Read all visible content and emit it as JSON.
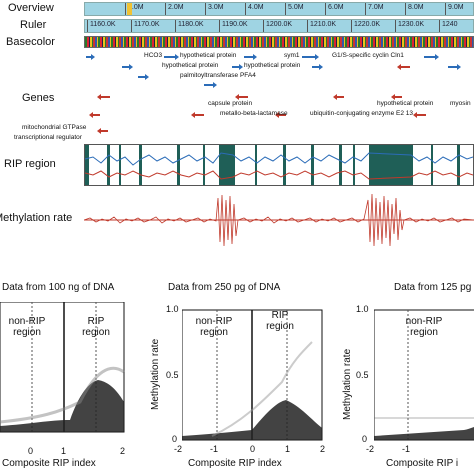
{
  "tracks": {
    "overview_label": "Overview",
    "ruler_label": "Ruler",
    "basecolor_label": "Basecolor",
    "genes_label": "Genes",
    "rip_label": "RIP region",
    "methylation_label": "Methylation rate"
  },
  "overview_ticks": [
    "1.0M",
    "2.0M",
    "3.0M",
    "4.0M",
    "5.0M",
    "6.0M",
    "7.0M",
    "8.0M",
    "9.0M"
  ],
  "ruler_ticks": [
    "1160.0K",
    "1170.0K",
    "1180.0K",
    "1190.0K",
    "1200.0K",
    "1210.0K",
    "1220.0K",
    "1230.0K",
    "1240"
  ],
  "genes": {
    "g1": "HCO3",
    "g2": "hypothetical protein",
    "g3": "sym1",
    "g4": "G1/S-specific cyclin Cln1",
    "g5": "hypothetical protein",
    "g6": "hypothetical protein",
    "g7": "palmitoyltransferase PFA4",
    "g8": "capsule protein",
    "g9": "metallo-beta-lactamase",
    "g10": "hypothetical protein",
    "g11": "myosin",
    "g12": "ubiquitin-conjugating enzyme E2 13",
    "g13": "mitochondrial GTPase",
    "g14": "transcriptional regulator"
  },
  "scatter_panels": [
    {
      "title": "Data from 100 ng of DNA",
      "xlabel": "Composite RIP index",
      "ylabel": "",
      "left_region": "non-RIP region",
      "right_region": "RIP region",
      "xticks": [
        "0",
        "1",
        "2"
      ],
      "yticks": []
    },
    {
      "title": "Data from 250 pg of DNA",
      "xlabel": "Composite RIP index",
      "ylabel": "Methylation rate",
      "left_region": "non-RIP region",
      "right_region": "RIP region",
      "xticks": [
        "-2",
        "-1",
        "0",
        "1",
        "2"
      ],
      "yticks": [
        "0",
        "0.5",
        "1.0"
      ]
    },
    {
      "title": "Data from 125 pg",
      "xlabel": "Composite RIP i",
      "ylabel": "Methylation rate",
      "left_region": "non-RIP region",
      "right_region": "",
      "xticks": [
        "-2",
        "-1"
      ],
      "yticks": [
        "0",
        "0.5",
        "1.0"
      ]
    }
  ],
  "colors": {
    "overview_bg": "#9fd4e3",
    "rip_fill": "#1f5f57",
    "rip_blue_line": "#2b6cb8",
    "rip_red_line": "#c0392b",
    "methylation_line": "#c0392b",
    "scatter_points": "#222222"
  }
}
